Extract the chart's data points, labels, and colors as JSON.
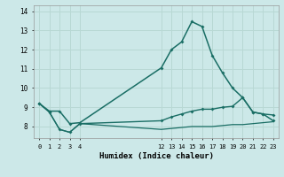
{
  "background_color": "#cce8e8",
  "grid_color": "#b8d8d4",
  "line_color": "#1a6e65",
  "xlabel": "Humidex (Indice chaleur)",
  "xlim": [
    -0.5,
    23.5
  ],
  "ylim": [
    7.4,
    14.3
  ],
  "yticks": [
    8,
    9,
    10,
    11,
    12,
    13,
    14
  ],
  "xticks": [
    0,
    1,
    2,
    3,
    4,
    12,
    13,
    14,
    15,
    16,
    17,
    18,
    19,
    20,
    21,
    22,
    23
  ],
  "line1_x": [
    0,
    1,
    2,
    3,
    4,
    12,
    13,
    14,
    15,
    16,
    17,
    18,
    19,
    20,
    21,
    22,
    23
  ],
  "line1_y": [
    9.2,
    8.8,
    8.8,
    8.15,
    8.2,
    11.05,
    12.0,
    12.4,
    13.45,
    13.2,
    11.7,
    10.8,
    10.0,
    9.5,
    8.75,
    8.65,
    8.3
  ],
  "line2_x": [
    0,
    1,
    2,
    3,
    4,
    12,
    13,
    14,
    15,
    16,
    17,
    18,
    19,
    20,
    21,
    22,
    23
  ],
  "line2_y": [
    9.2,
    8.75,
    7.85,
    7.7,
    8.15,
    8.3,
    8.5,
    8.65,
    8.8,
    8.9,
    8.9,
    9.0,
    9.05,
    9.5,
    8.75,
    8.65,
    8.6
  ],
  "line3_x": [
    0,
    1,
    2,
    3,
    4,
    12,
    13,
    14,
    15,
    16,
    17,
    18,
    19,
    20,
    21,
    22,
    23
  ],
  "line3_y": [
    9.2,
    8.75,
    7.85,
    7.7,
    8.15,
    7.85,
    7.9,
    7.95,
    8.0,
    8.0,
    8.0,
    8.05,
    8.1,
    8.1,
    8.15,
    8.2,
    8.25
  ]
}
